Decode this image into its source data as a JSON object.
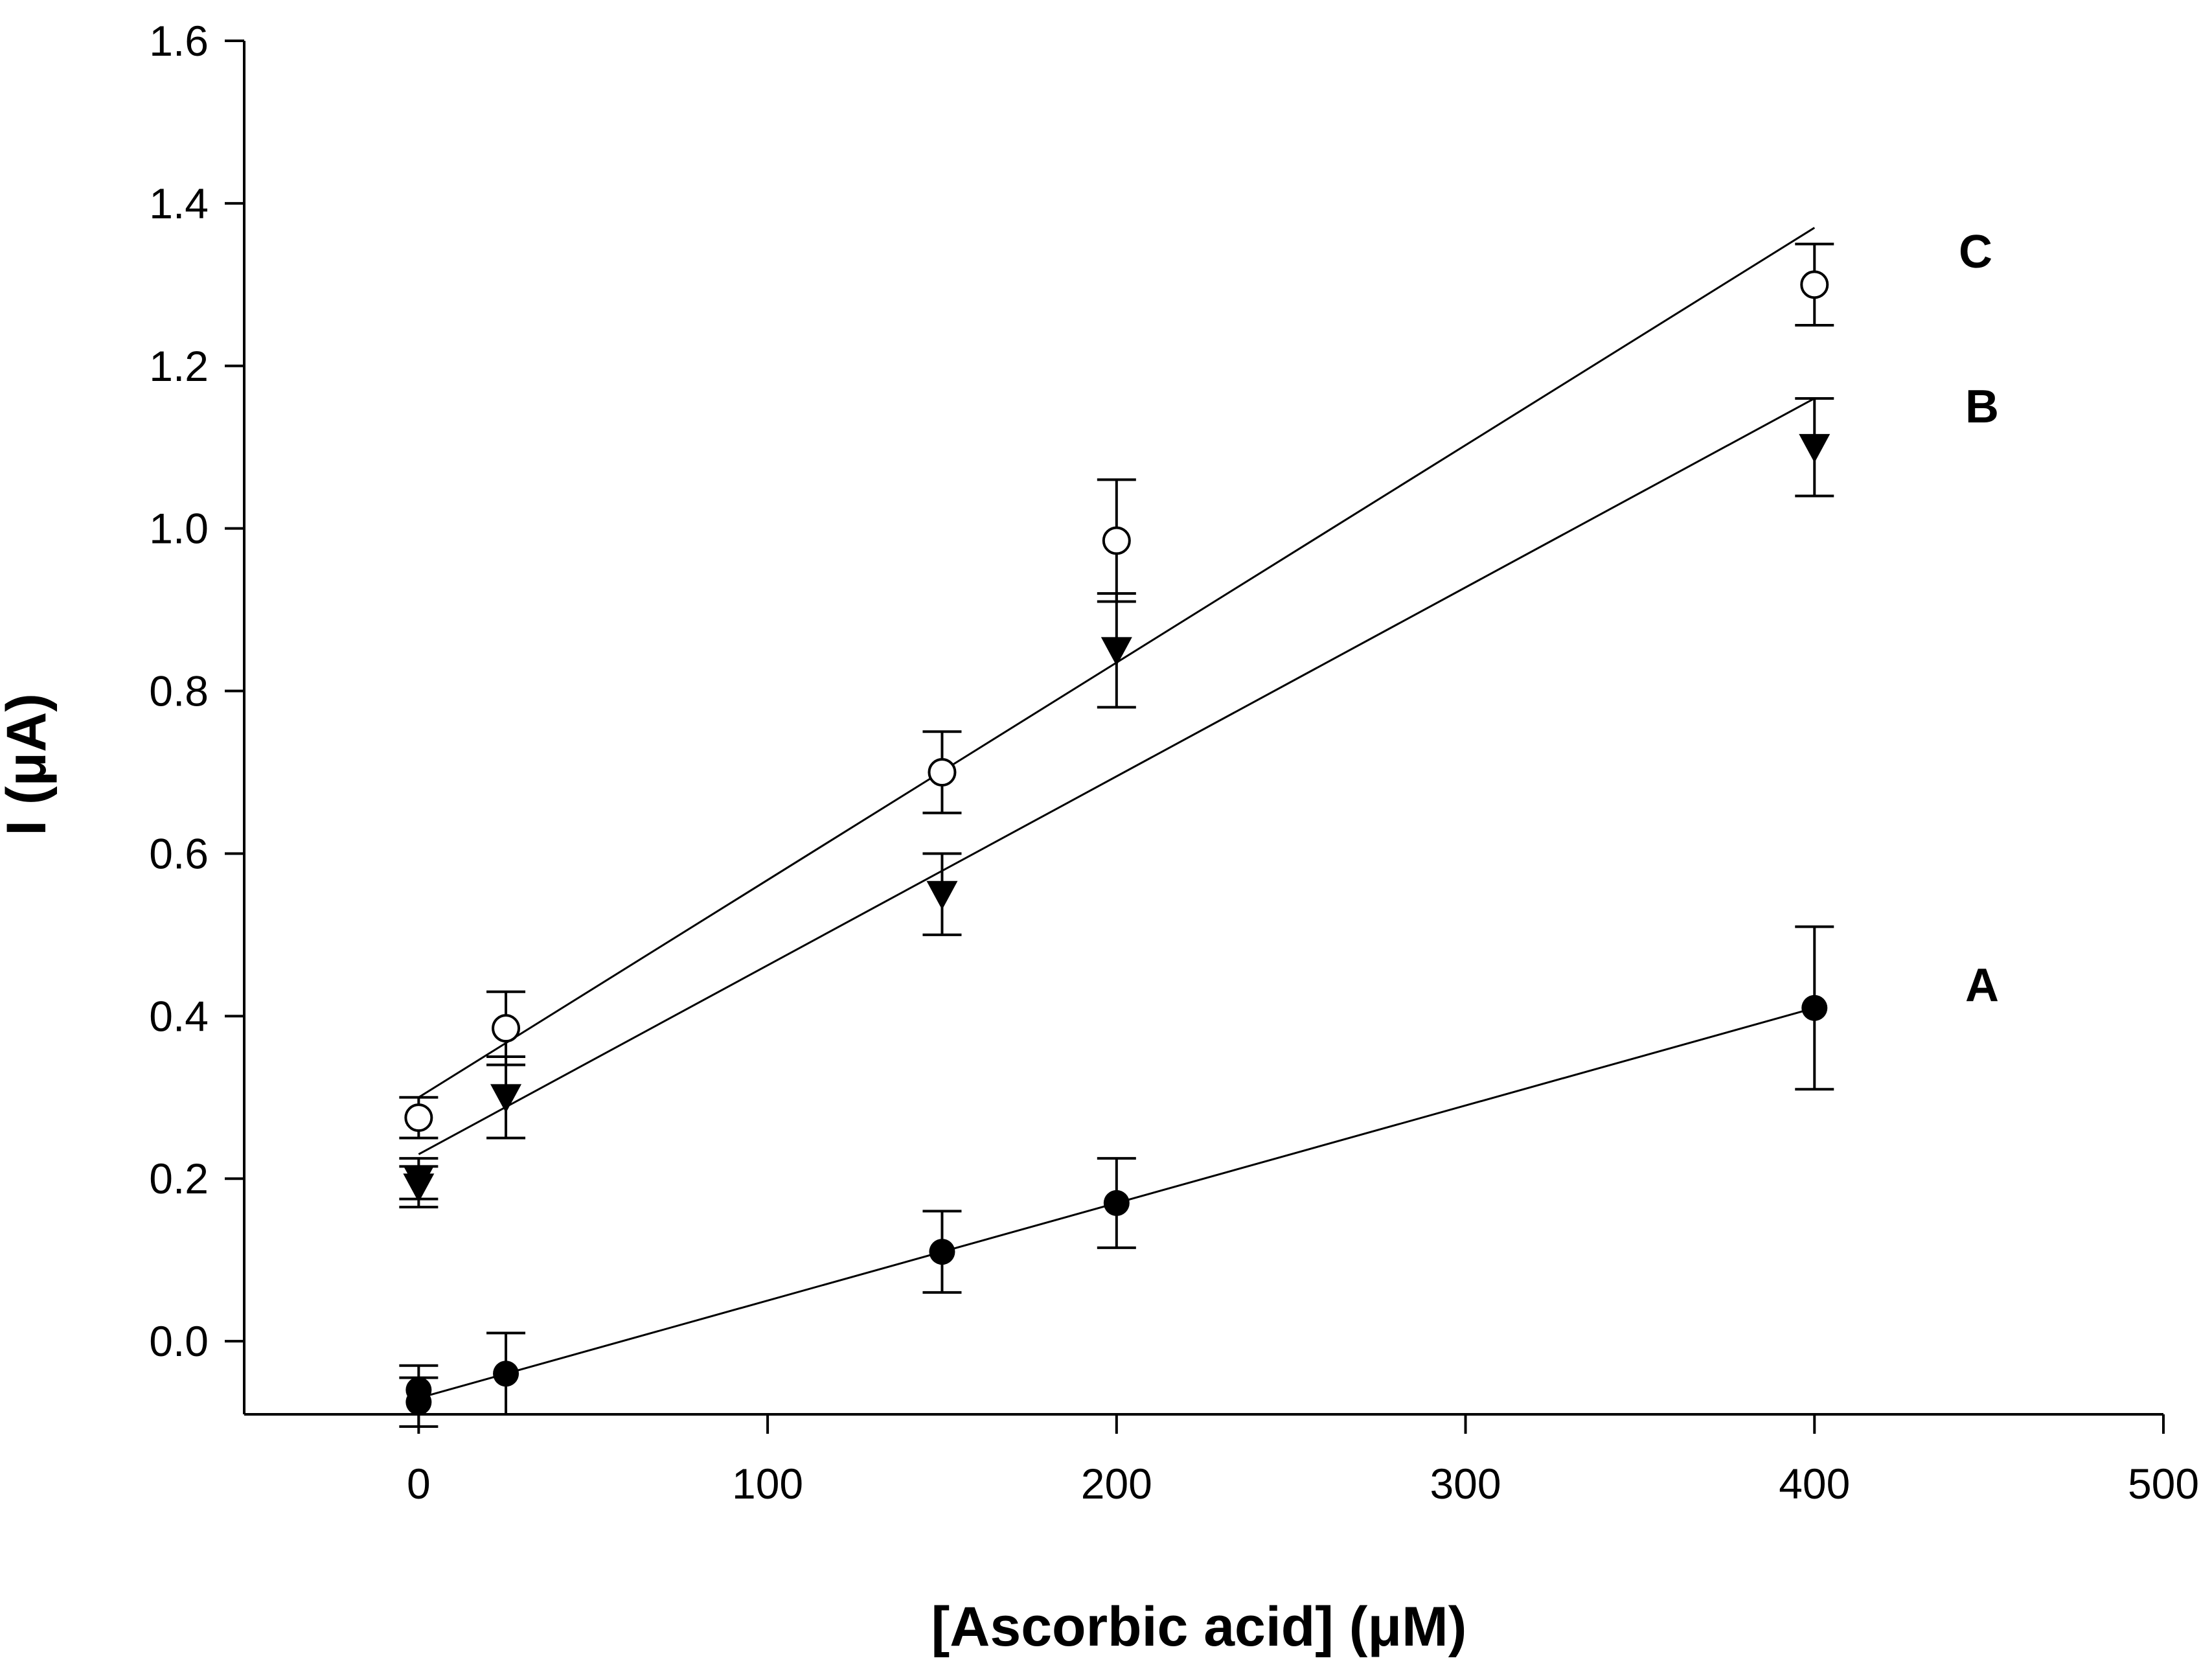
{
  "chart_data": {
    "type": "scatter",
    "title": "",
    "xlabel": "[Ascorbic acid] (μM)",
    "ylabel": "I (μA)",
    "xlim": [
      -50,
      500
    ],
    "ylim": [
      -0.09,
      1.6
    ],
    "xticks": [
      0,
      100,
      200,
      300,
      400,
      500
    ],
    "yticks": [
      0.0,
      0.2,
      0.4,
      0.6,
      0.8,
      1.0,
      1.2,
      1.4,
      1.6
    ],
    "xtick_labels": [
      "0",
      "100",
      "200",
      "300",
      "400",
      "500"
    ],
    "ytick_labels": [
      "0.0",
      "0.2",
      "0.4",
      "0.6",
      "0.8",
      "1.0",
      "1.2",
      "1.4",
      "1.6"
    ],
    "grid": false,
    "legend": "none",
    "series": [
      {
        "label": "A",
        "marker": "filled-circle",
        "points": [
          {
            "x": 0,
            "y": -0.06,
            "err": 0.03
          },
          {
            "x": 0,
            "y": -0.075,
            "err": 0.03
          },
          {
            "x": 25,
            "y": -0.04,
            "err": 0.05
          },
          {
            "x": 150,
            "y": 0.11,
            "err": 0.05
          },
          {
            "x": 200,
            "y": 0.17,
            "err": 0.055
          },
          {
            "x": 400,
            "y": 0.41,
            "err": 0.1
          }
        ],
        "fit": {
          "x": [
            0,
            400
          ],
          "y": [
            -0.07,
            0.41
          ]
        }
      },
      {
        "label": "B",
        "marker": "filled-triangle-down",
        "points": [
          {
            "x": 0,
            "y": 0.19,
            "err": 0.025
          },
          {
            "x": 0,
            "y": 0.2,
            "err": 0.025
          },
          {
            "x": 25,
            "y": 0.3,
            "err": 0.05
          },
          {
            "x": 150,
            "y": 0.55,
            "err": 0.05
          },
          {
            "x": 200,
            "y": 0.85,
            "err": 0.07
          },
          {
            "x": 400,
            "y": 1.1,
            "err": 0.06
          }
        ],
        "fit": {
          "x": [
            0,
            400
          ],
          "y": [
            0.23,
            1.16
          ]
        }
      },
      {
        "label": "C",
        "marker": "open-circle",
        "points": [
          {
            "x": 0,
            "y": 0.275,
            "err": 0.025
          },
          {
            "x": 25,
            "y": 0.385,
            "err": 0.045
          },
          {
            "x": 150,
            "y": 0.7,
            "err": 0.05
          },
          {
            "x": 200,
            "y": 0.985,
            "err": 0.075
          },
          {
            "x": 400,
            "y": 1.3,
            "err": 0.05
          }
        ],
        "fit": {
          "x": [
            0,
            400
          ],
          "y": [
            0.3,
            1.37
          ]
        }
      }
    ]
  }
}
